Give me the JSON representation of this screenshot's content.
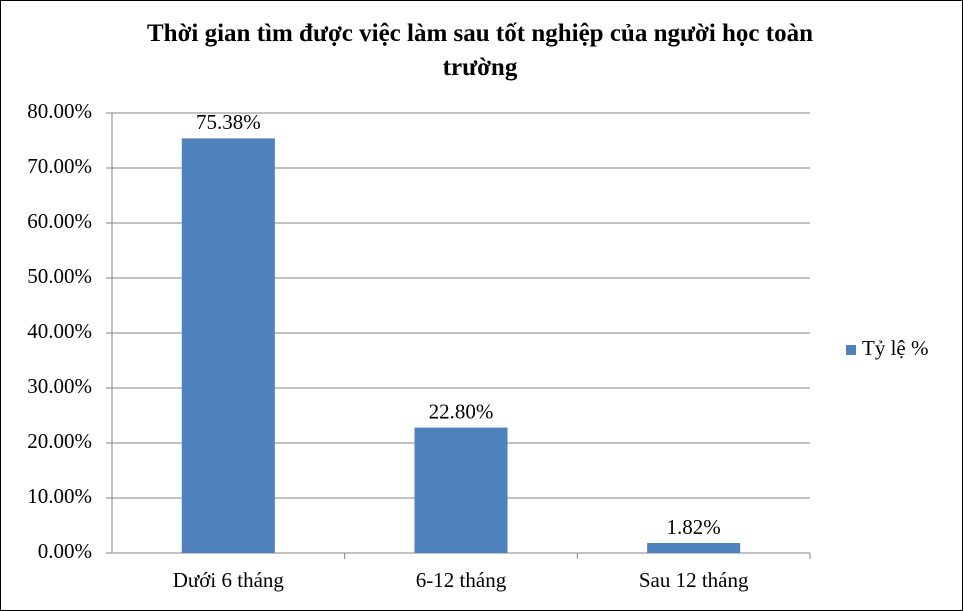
{
  "chart_data": {
    "type": "bar",
    "title": "Thời gian tìm được việc làm sau tốt nghiệp của người học toàn trường",
    "categories": [
      "Dưới 6 tháng",
      "6-12 tháng",
      "Sau 12 tháng"
    ],
    "series": [
      {
        "name": "Tỷ lệ %",
        "color": "#4f81bd",
        "values": [
          75.38,
          22.8,
          1.82
        ],
        "value_labels": [
          "75.38%",
          "22.80%",
          "1.82%"
        ]
      }
    ],
    "ylim": [
      0,
      80
    ],
    "yticks": [
      {
        "value": 0,
        "label": "0.00%"
      },
      {
        "value": 10,
        "label": "10.00%"
      },
      {
        "value": 20,
        "label": "20.00%"
      },
      {
        "value": 30,
        "label": "30.00%"
      },
      {
        "value": 40,
        "label": "40.00%"
      },
      {
        "value": 50,
        "label": "50.00%"
      },
      {
        "value": 60,
        "label": "60.00%"
      },
      {
        "value": 70,
        "label": "70.00%"
      },
      {
        "value": 80,
        "label": "80.00%"
      }
    ],
    "grid": true,
    "legend": "right"
  }
}
